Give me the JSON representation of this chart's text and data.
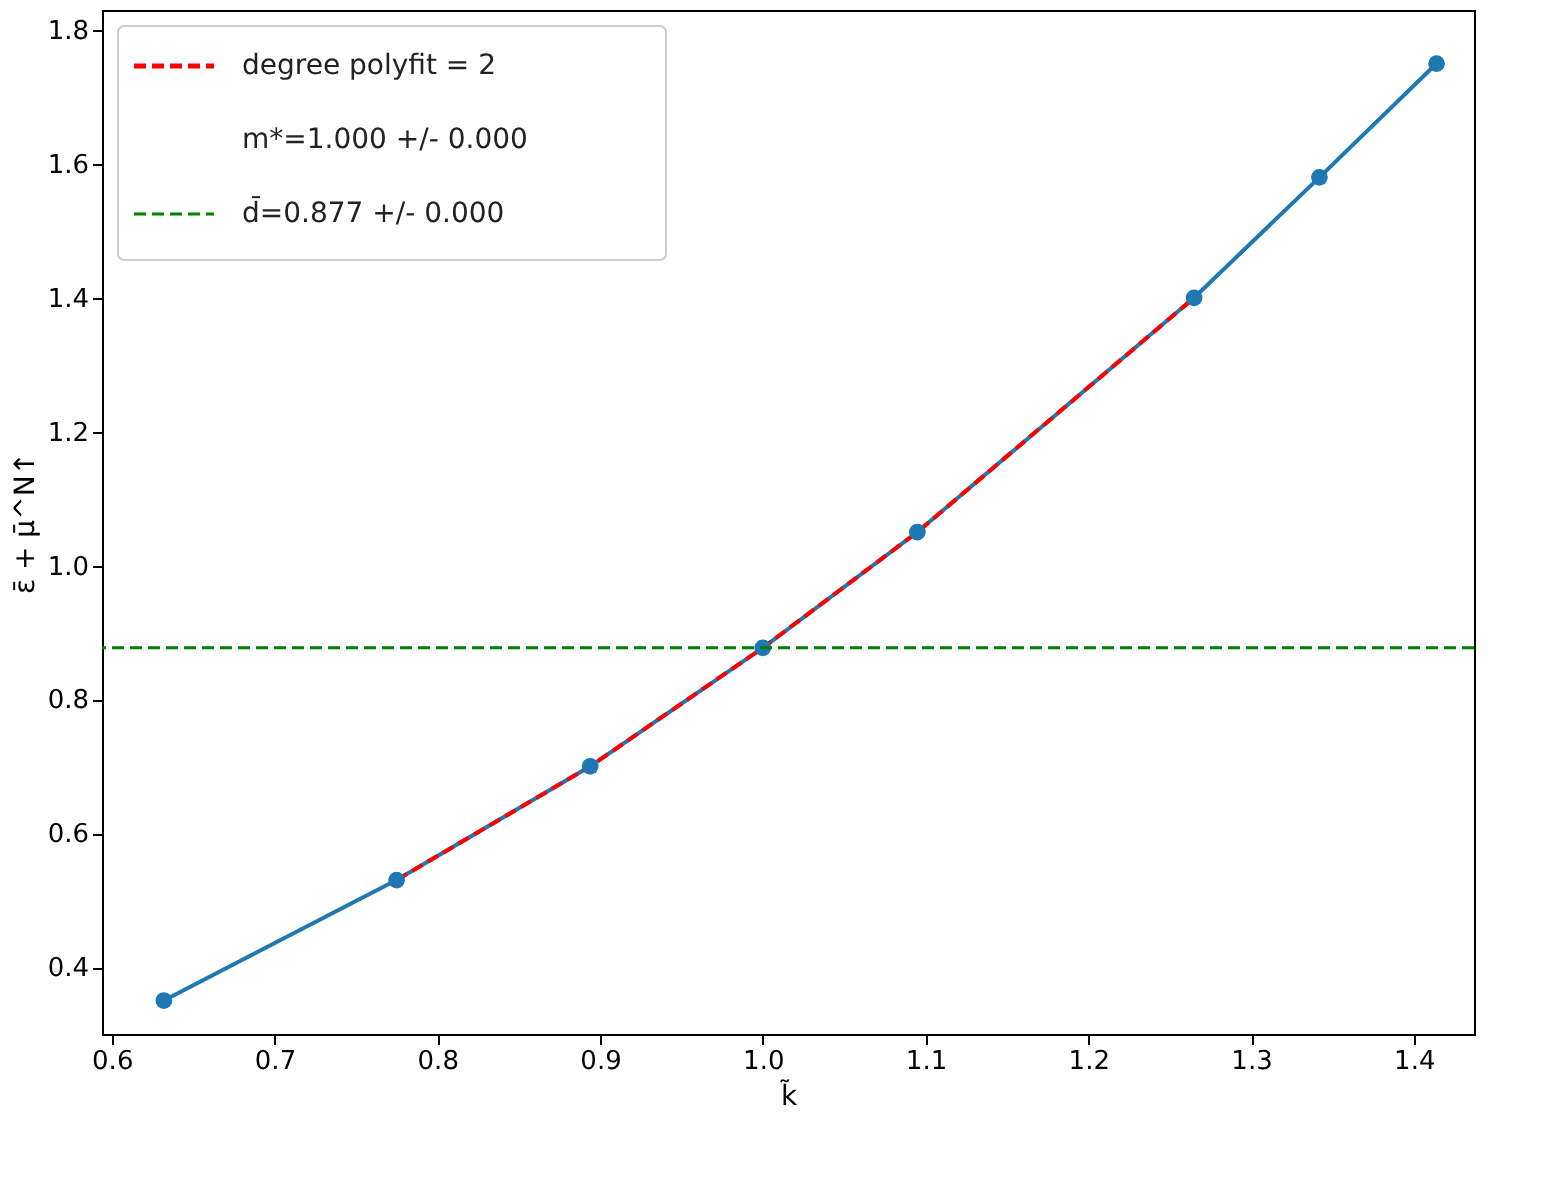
{
  "chart_data": {
    "type": "line",
    "xlabel": "k̃",
    "ylabel": "ε̄ + μ̄^N↑",
    "xlim": [
      0.594,
      1.437
    ],
    "xticks": [
      {
        "value": 0.6,
        "label": "0.6"
      },
      {
        "value": 0.7,
        "label": "0.7"
      },
      {
        "value": 0.8,
        "label": "0.8"
      },
      {
        "value": 0.9,
        "label": "0.9"
      },
      {
        "value": 1.0,
        "label": "1.0"
      },
      {
        "value": 1.1,
        "label": "1.1"
      },
      {
        "value": 1.2,
        "label": "1.2"
      },
      {
        "value": 1.3,
        "label": "1.3"
      },
      {
        "value": 1.4,
        "label": "1.4"
      }
    ],
    "ylim": [
      0.3,
      1.83
    ],
    "yticks": [
      {
        "value": 0.4,
        "label": "0.4"
      },
      {
        "value": 0.6,
        "label": "0.6"
      },
      {
        "value": 0.8,
        "label": "0.8"
      },
      {
        "value": 1.0,
        "label": "1.0"
      },
      {
        "value": 1.2,
        "label": "1.2"
      },
      {
        "value": 1.4,
        "label": "1.4"
      },
      {
        "value": 1.6,
        "label": "1.6"
      },
      {
        "value": 1.8,
        "label": "1.8"
      }
    ],
    "grid": false,
    "legend": "top left",
    "marker": "circle",
    "series": [
      {
        "color": "#1f77b4",
        "x": [
          0.632,
          0.775,
          0.894,
          1.0,
          1.095,
          1.265,
          1.342,
          1.414
        ],
        "values": [
          0.35,
          0.53,
          0.7,
          0.877,
          1.05,
          1.4,
          1.58,
          1.75
        ],
        "line_style": "solid"
      },
      {
        "name": "degree polyfit = 2",
        "color": "#ff0000",
        "x": [
          0.775,
          0.894,
          1.0,
          1.095,
          1.265
        ],
        "values": [
          0.53,
          0.7,
          0.877,
          1.05,
          1.4
        ],
        "marker": "none",
        "line_style": "dashed"
      }
    ],
    "ref_lines": [
      {
        "axis": "y",
        "value": 0.877,
        "label": "d̄=0.877 +/- 0.000",
        "color": "#008000",
        "line_style": "dashed"
      }
    ],
    "annotations": [
      "m*=1.000 +/- 0.000"
    ]
  }
}
